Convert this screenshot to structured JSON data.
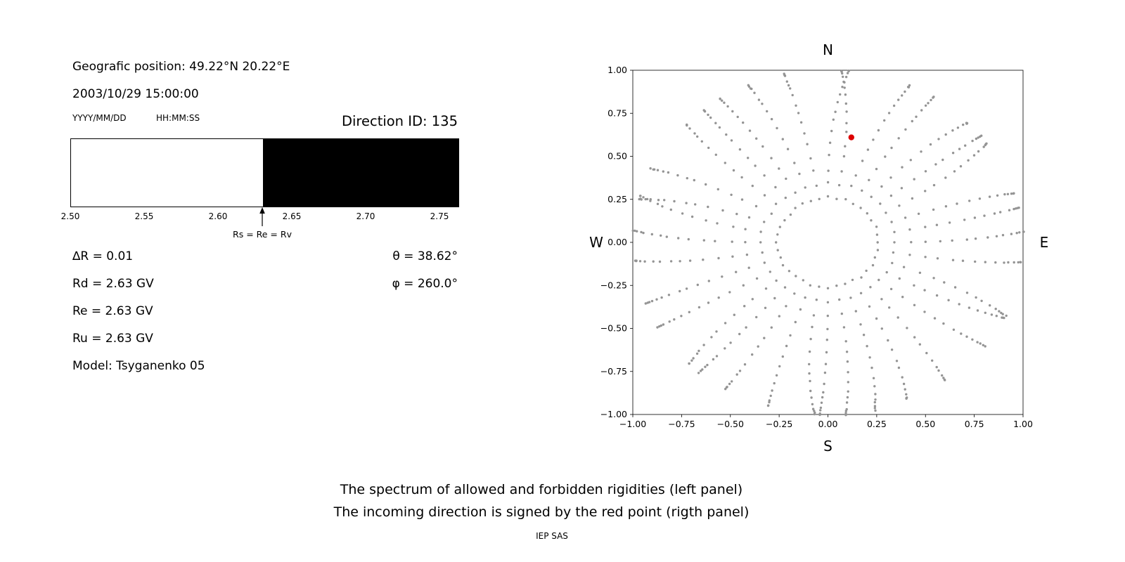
{
  "info": {
    "position": "Geografic position: 49.22°N 20.22°E",
    "datetime": "2003/10/29 15:00:00",
    "date_format": "YYYY/MM/DD",
    "time_format": "HH:MM:SS",
    "direction_id": "Direction ID: 135",
    "delta_r": "∆R = 0.01",
    "rd": "Rd = 2.63 GV",
    "re": "Re = 2.63 GV",
    "ru": "Ru = 2.63 GV",
    "model": "Model: Tsyganenko 05",
    "theta": "θ = 38.62°",
    "phi": "φ = 260.0°"
  },
  "caption": {
    "line1": "The spectrum of allowed and forbidden rigidities (left panel)",
    "line2": "The incoming direction is signed by the red point (rigth panel)",
    "credit": "IEP SAS"
  },
  "chart_data": [
    {
      "id": "rigidity-spectrum",
      "type": "bar",
      "title": "",
      "x_min": 2.5,
      "x_max": 2.7624,
      "tick_values": [
        2.5,
        2.55,
        2.6,
        2.65,
        2.7,
        2.75
      ],
      "tick_labels": [
        "2.50",
        "2.55",
        "2.60",
        "2.65",
        "2.70",
        "2.75"
      ],
      "regions": [
        {
          "name": "allowed",
          "from": 2.5,
          "to": 2.63,
          "color": "#ffffff"
        },
        {
          "name": "forbidden",
          "from": 2.63,
          "to": 2.7624,
          "color": "#000000"
        }
      ],
      "marker": {
        "x": 2.63,
        "label": "Rs = Re = Rv"
      },
      "values": {
        "deltaR": 0.01,
        "Rd": 2.63,
        "Re": 2.63,
        "Ru": 2.63,
        "unit": "GV"
      }
    },
    {
      "id": "incoming-direction",
      "type": "scatter",
      "xlim": [
        -1,
        1
      ],
      "ylim": [
        -1,
        1
      ],
      "xtick_values": [
        -1,
        -0.75,
        -0.5,
        -0.25,
        0,
        0.25,
        0.5,
        0.75,
        1
      ],
      "xtick_labels": [
        "−1.00",
        "−0.75",
        "−0.50",
        "−0.25",
        "0.00",
        "0.25",
        "0.50",
        "0.75",
        "1.00"
      ],
      "ytick_values": [
        1,
        0.75,
        0.5,
        0.25,
        0,
        -0.25,
        -0.5,
        -0.75,
        -1
      ],
      "ytick_labels": [
        "1.00",
        "0.75",
        "0.50",
        "0.25",
        "0.00",
        "−0.25",
        "−0.50",
        "−0.75",
        "−1.00"
      ],
      "compass": {
        "north": "N",
        "south": "S",
        "east": "E",
        "west": "W"
      },
      "grid_dots": {
        "azimuth_deg_start": 0,
        "azimuth_deg_step": 10,
        "azimuth_count": 36,
        "zenith_deg_start": 15,
        "zenith_deg_end": 90,
        "zenith_deg_step": 5,
        "radius_rule": "sin(zenith)",
        "color": "#949494"
      },
      "red_point": {
        "x": 0.12,
        "y": 0.61,
        "color": "#dd0000",
        "theta_deg": 38.62,
        "phi_deg": 260.0
      }
    }
  ]
}
